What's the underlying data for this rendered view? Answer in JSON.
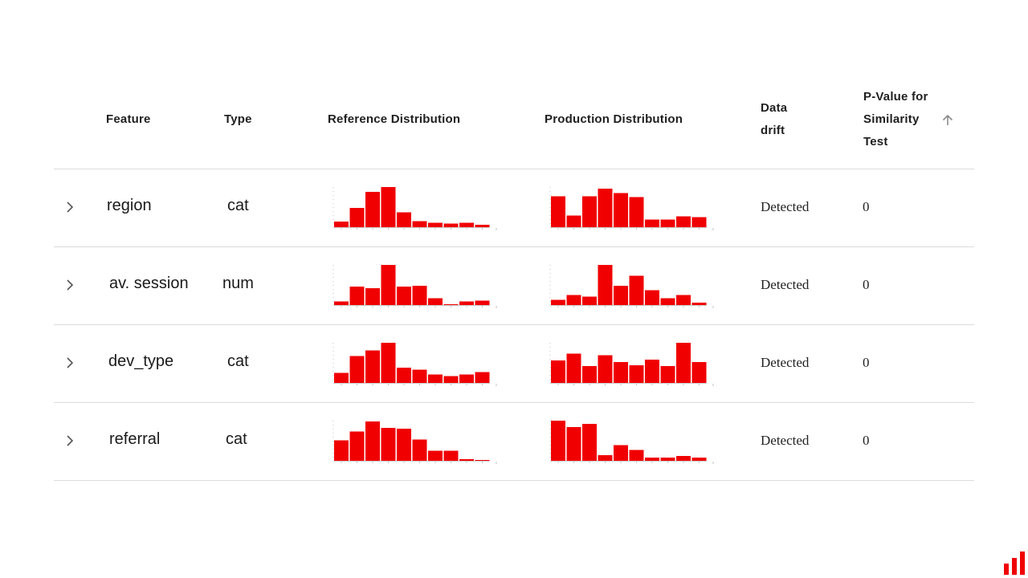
{
  "colors": {
    "bar": "#f00000",
    "axis": "#9a9a9a",
    "divider": "#dcdcdc"
  },
  "icons": {
    "expand": "chevron-right-icon",
    "sort": "arrow-up-icon",
    "brand": "bar-chart-logo-icon"
  },
  "header": {
    "feature": "Feature",
    "type": "Type",
    "reference": "Reference Distribution",
    "production": "Production Distribution",
    "drift_line1": "Data",
    "drift_line2": "drift",
    "pvalue_line1": "P-Value for",
    "pvalue_line2": "Similarity",
    "pvalue_line3": "Test"
  },
  "rows": [
    {
      "feature": "region",
      "type": "cat",
      "drift": "Detected",
      "pvalue": "0",
      "reference": [
        0.14,
        0.48,
        0.88,
        1.0,
        0.37,
        0.15,
        0.11,
        0.09,
        0.11,
        0.06
      ],
      "production": [
        0.77,
        0.29,
        0.77,
        0.96,
        0.85,
        0.75,
        0.19,
        0.19,
        0.27,
        0.25
      ]
    },
    {
      "feature": "av. session",
      "type": "num",
      "drift": "Detected",
      "pvalue": "0",
      "reference": [
        0.09,
        0.46,
        0.42,
        1.0,
        0.46,
        0.48,
        0.17,
        0.02,
        0.09,
        0.11
      ],
      "production": [
        0.13,
        0.25,
        0.21,
        1.0,
        0.48,
        0.73,
        0.37,
        0.17,
        0.25,
        0.06
      ]
    },
    {
      "feature": "dev_type",
      "type": "cat",
      "drift": "Detected",
      "pvalue": "0",
      "reference": [
        0.25,
        0.67,
        0.81,
        1.0,
        0.38,
        0.33,
        0.21,
        0.17,
        0.21,
        0.27
      ],
      "production": [
        0.56,
        0.73,
        0.42,
        0.69,
        0.52,
        0.44,
        0.58,
        0.42,
        1.0,
        0.52
      ]
    },
    {
      "feature": "referral",
      "type": "cat",
      "drift": "Detected",
      "pvalue": "0",
      "reference": [
        0.51,
        0.73,
        0.98,
        0.82,
        0.8,
        0.53,
        0.25,
        0.25,
        0.04,
        0.02
      ],
      "production": [
        1.0,
        0.84,
        0.92,
        0.14,
        0.39,
        0.27,
        0.08,
        0.08,
        0.12,
        0.08
      ]
    }
  ]
}
